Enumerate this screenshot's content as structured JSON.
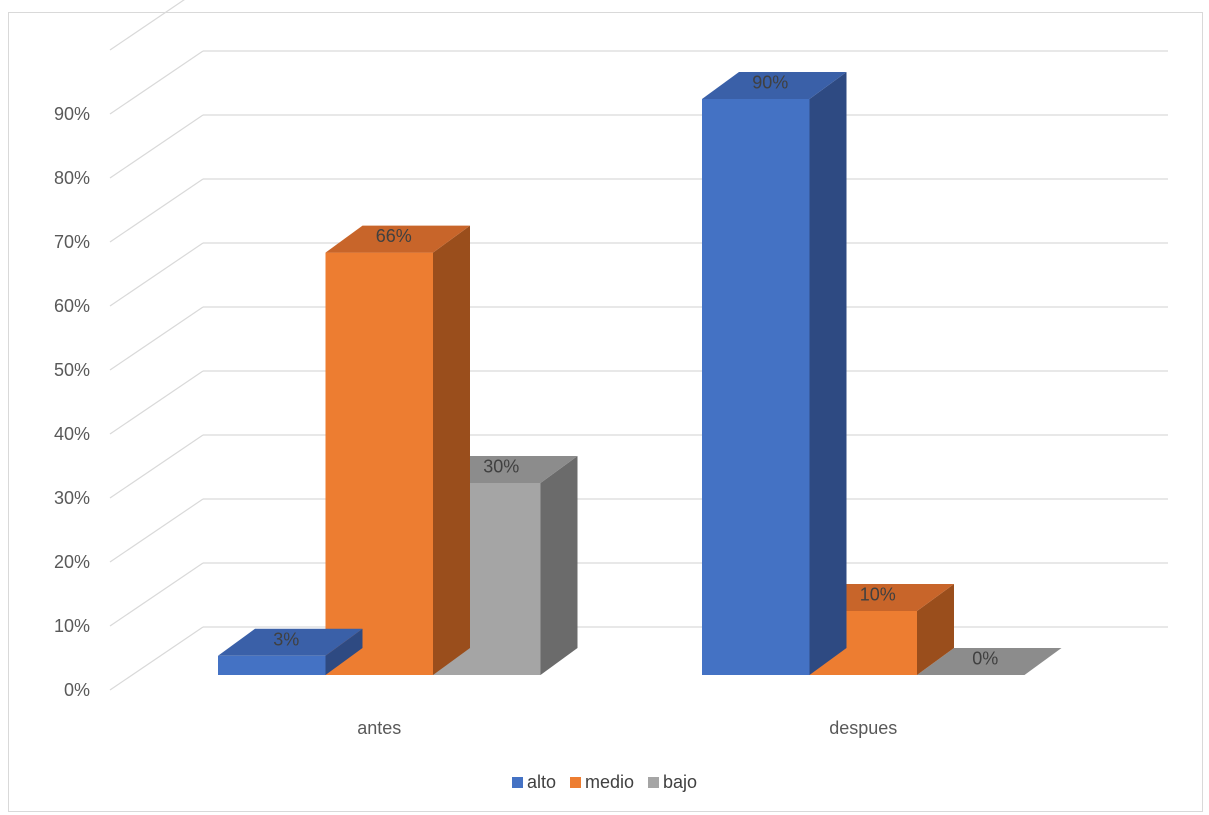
{
  "chart_data": {
    "type": "bar",
    "categories": [
      "antes",
      "despues"
    ],
    "series": [
      {
        "name": "alto",
        "values": [
          3,
          90
        ],
        "labels": [
          "3%",
          "90%"
        ],
        "color": "#4472C4",
        "side_color": "#2E4A82",
        "top_color": "#3A60A8"
      },
      {
        "name": "medio",
        "values": [
          66,
          10
        ],
        "labels": [
          "66%",
          "10%"
        ],
        "color": "#ED7D31",
        "side_color": "#9A4E1C",
        "top_color": "#C8652A"
      },
      {
        "name": "bajo",
        "values": [
          30,
          0
        ],
        "labels": [
          "30%",
          "0%"
        ],
        "color": "#A5A5A5",
        "side_color": "#6B6B6B",
        "top_color": "#8C8C8C"
      }
    ],
    "y_ticks": [
      "0%",
      "10%",
      "20%",
      "30%",
      "40%",
      "50%",
      "60%",
      "70%",
      "80%",
      "90%"
    ],
    "ylim": [
      0,
      100
    ],
    "grid": true,
    "legend_position": "bottom",
    "title": "",
    "xlabel": "",
    "ylabel": ""
  }
}
